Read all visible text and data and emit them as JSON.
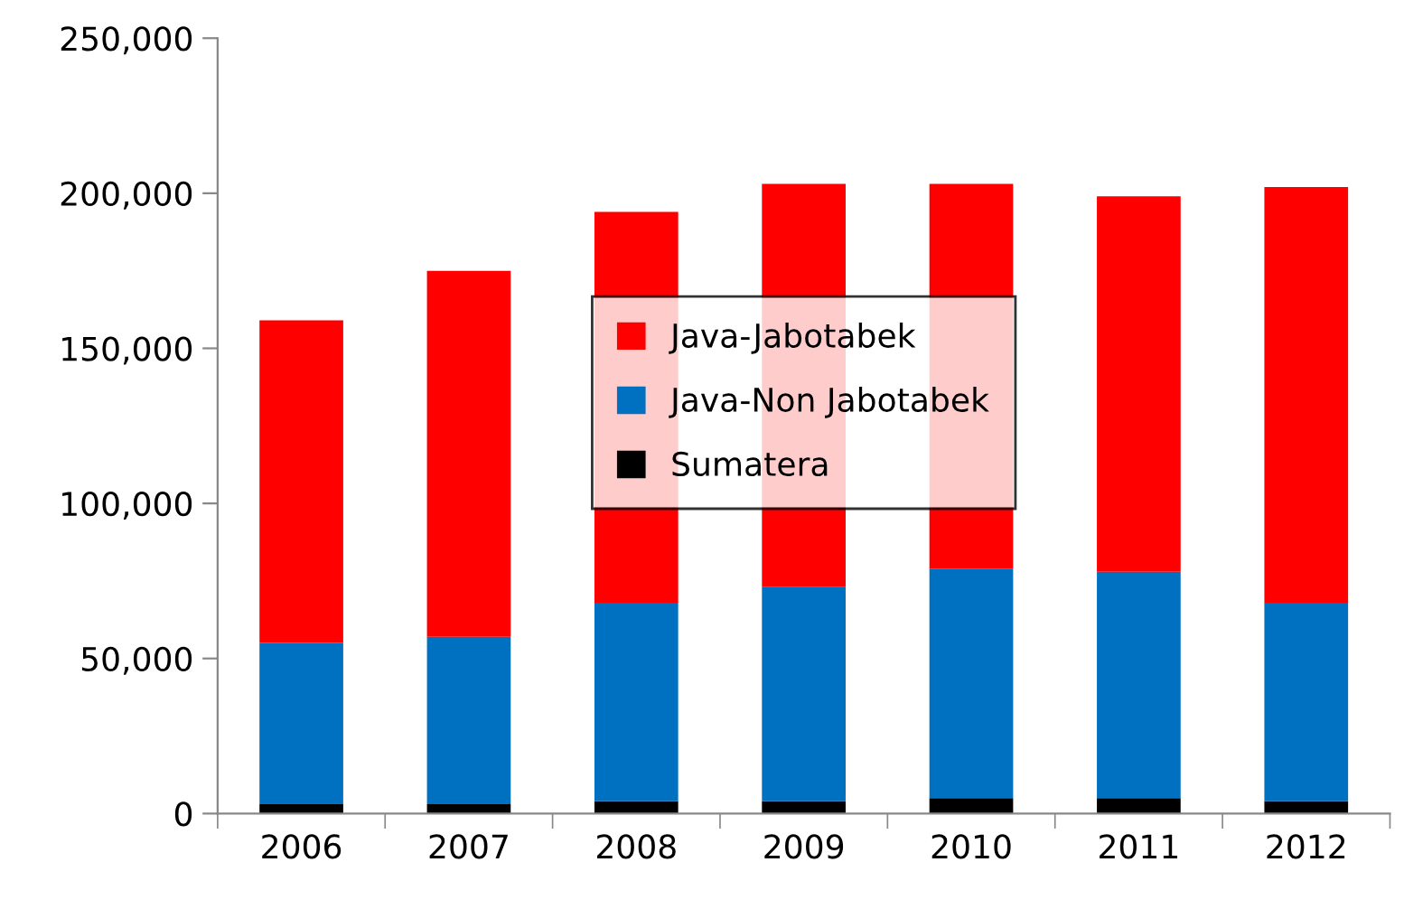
{
  "chart_data": {
    "type": "bar",
    "stacked": true,
    "categories": [
      "2006",
      "2007",
      "2008",
      "2009",
      "2010",
      "2011",
      "2012"
    ],
    "series": [
      {
        "name": "Sumatera",
        "color": "#000000",
        "values": [
          3000,
          3000,
          4000,
          4000,
          5000,
          5000,
          4000
        ]
      },
      {
        "name": "Java-Non Jabotabek",
        "color": "#0070c0",
        "values": [
          52000,
          54000,
          64000,
          69000,
          74000,
          73000,
          64000
        ]
      },
      {
        "name": "Java-Jabotabek",
        "color": "#ff0000",
        "values": [
          104000,
          118000,
          126000,
          130000,
          124000,
          121000,
          134000
        ]
      }
    ],
    "ylim": [
      0,
      250000
    ],
    "yticks": [
      {
        "value": 0,
        "label": "0"
      },
      {
        "value": 50000,
        "label": "50,000"
      },
      {
        "value": 100000,
        "label": "100,000"
      },
      {
        "value": 150000,
        "label": "150,000"
      },
      {
        "value": 200000,
        "label": "200,000"
      },
      {
        "value": 250000,
        "label": "250,000"
      }
    ],
    "grid": false,
    "legend": "center"
  }
}
